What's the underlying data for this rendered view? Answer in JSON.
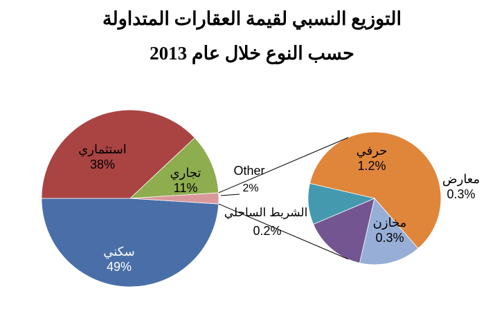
{
  "chart_data": {
    "type": "pie",
    "subtype": "pie-of-pie",
    "title": "التوزيع النسبي لقيمة العقارات المتداولة",
    "subtitle": "حسب النوع خلال عام 2013",
    "main_pie": [
      {
        "label": "سكني",
        "value": 49,
        "value_label": "49%",
        "color": "#4a6fa8"
      },
      {
        "label": "استثماري",
        "value": 38,
        "value_label": "38%",
        "color": "#a94443"
      },
      {
        "label": "تجاري",
        "value": 11,
        "value_label": "11%",
        "color": "#8ead4f"
      },
      {
        "label": "Other",
        "value": 2,
        "value_label": "2%",
        "color": "#d9999a"
      }
    ],
    "secondary_pie": [
      {
        "label": "حرفي",
        "value": 1.2,
        "value_label": "1.2%",
        "color": "#e0863b"
      },
      {
        "label": "معارض",
        "value": 0.3,
        "value_label": "0.3%",
        "color": "#97aed6"
      },
      {
        "label": "مخازن",
        "value": 0.3,
        "value_label": "0.3%",
        "color": "#735691"
      },
      {
        "label": "الشريط الساحلي",
        "value": 0.2,
        "value_label": "0.2%",
        "color": "#4599ae"
      }
    ]
  }
}
